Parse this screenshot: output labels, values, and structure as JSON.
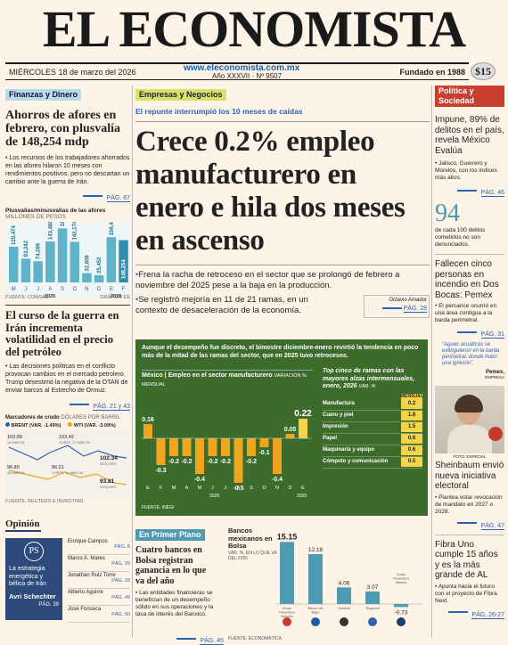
{
  "masthead": {
    "title": "EL ECONOMISTA"
  },
  "dateline": {
    "date": "MIÉRCOLES 18 de marzo del 2026",
    "url": "www.eleconomista.com.mx",
    "volume": "Año XXXVII · Nº 9507",
    "founded": "Fundado en 1988",
    "price": "$15"
  },
  "left": {
    "section": "Finanzas y Dinero",
    "headline": "Ahorros de afores en febrero, con plusvalía de 148,254 mdp",
    "body": "• Los recursos de los trabajadores ahorrados en las afores hilaron 10 meses con rendimientos positivos, pero no descartan un cambio ante la guerra de Irán.",
    "page": "PÁG. 67",
    "chart_title": "Plusvalías/minusvalías de las afores",
    "chart_unit": "MILLONES DE PESOS",
    "year1": "2025",
    "year2": "2026",
    "source": "FUENTE: CONSAR",
    "graphic": "GRÁFICO EE",
    "headline2": "El curso de la guerra en Irán incrementa volatilidad en el precio del petróleo",
    "body2": "• Las decisiones políticas en el conflicto provocan cambios en el mercado petrolero. Trump desestimó la negativa de la OTAN de enviar barcos al Estrecho de Ormuz.",
    "page2": "PÁG. 21 y 43",
    "oil_title": "Marcadores de crudo",
    "oil_unit": "DÓLARES POR BARRIL",
    "brent_label": "BRENT (VAR. -1.49%)",
    "wti_label": "WTI (VAR. -3.09%)",
    "oil_source": "FUENTE: REUTERS E INVESTING"
  },
  "center": {
    "section": "Empresas y Negocios",
    "kicker": "El repunte interrumpió los 10 meses de caídas",
    "headline": "Crece 0.2% empleo manufacturero en enero e hila dos meses en ascenso",
    "bullet1": "Frena la racha de retroceso en el sector que se prolongó de febrero a noviembre del 2025 pese a la baja en la producción.",
    "bullet2": "Se registró mejoría en 11 de 21 ramas, en un contexto de desaceleración de la economía.",
    "author": "Octavio Amador",
    "page": "PÁG. 28",
    "box_lead": "Aunque el desempeño fue discreto, el bimestre diciembre-enero revirtió la tendencia en poco más de la mitad de las ramas del sector, que en 2025 tuvo retrocesos.",
    "box_chart_title": "México | Empleo en el sector manufacturero",
    "box_chart_unit": "VARIACIÓN % MENSUAL",
    "box_source": "FUENTE: INEGI",
    "top_title": "Top cinco de ramas con las mayores alzas intermensuales, enero, 2026",
    "top_unit": "VAR. %",
    "top_col": "MENSUAL"
  },
  "right": {
    "section": "Política y Sociedad",
    "headline": "Impune, 89% de delitos en el país, revela México Evalúa",
    "body": "• Jalisco, Guerrero y Morelos, con los índices más altos.",
    "page": "PÁG. 46",
    "stat": "94",
    "stat_caption": "de cada 100 delitos cometidos no son denunciados.",
    "headline2": "Fallecen cinco personas en incendio en Dos Bocas: Pemex",
    "body2": "• El percance ocurrió en una área contigua a la barda perimetral.",
    "page2": "PÁG. 31",
    "quote": "“Aguas acuáticas se extinguieron en la barda perimetral, donde hubo una ignición”.",
    "quote_by": "Pemex,",
    "quote_role": "EMPRESA",
    "photo_credit": "FOTO: ESPECIAL",
    "headline3": "Sheinbaum envió nueva iniciativa electoral",
    "body3": "• Plantea votar revocación de mandato en 2027 o 2028.",
    "page3": "PÁG. 47",
    "headline4": "Fibra Uno cumple 15 años y es la más grande de AL",
    "body4": "• Apunta hacia el futuro con el proyecto de Fibra Next.",
    "page4": "PÁG. 26-27"
  },
  "opinion": {
    "title": "Opinión",
    "logo": "PS",
    "feature_title": "La estrategia energética y bélica de Irán",
    "feature_author": "Avri Schechter",
    "feature_page": "PÁG. 39",
    "columnists": [
      {
        "name": "Enrique Campos",
        "page": "PÁG. 8"
      },
      {
        "name": "Marco A. Mares",
        "page": "PÁG. 29"
      },
      {
        "name": "Jonathan Ruiz Torre",
        "page": "PÁG. 33"
      },
      {
        "name": "Alberto Aguirre",
        "page": "PÁG. 49"
      },
      {
        "name": "José Fonseca",
        "page": "PÁG. 50"
      }
    ]
  },
  "primer_plano": {
    "section": "En Primer Plano",
    "headline": "Cuatro bancos en Bolsa registran ganancia en lo que va del año",
    "body": "• Las entidades financieras se beneficían de un desempeño sólido en sus operaciones y la tasa de interés del Banxico.",
    "page": "PÁG. 45",
    "chart_title": "Bancos mexicanos en Bolsa",
    "chart_unit": "VAR. %, EN LO QUE VA DEL 2026",
    "source": "FUENTE: ECONOMÁTICA"
  },
  "chart_data": [
    {
      "type": "bar",
      "title": "Plusvalías/minusvalías de las afores",
      "ylabel": "MILLONES DE PESOS",
      "categories": [
        "M",
        "J",
        "J",
        "A",
        "S",
        "O",
        "N",
        "D",
        "E",
        "F"
      ],
      "values": [
        125474,
        83242,
        74286,
        143466,
        189439,
        142174,
        32608,
        25452,
        158471,
        148254
      ]
    },
    {
      "type": "line",
      "title": "Marcadores de crudo",
      "ylabel": "DÓLARES POR BARRIL",
      "series": [
        {
          "name": "BRENT (VAR. -1.49%)",
          "labels": [
            "103.89",
            "103.42",
            "102.34"
          ],
          "notes": [
            "16-MAR-26",
            "CORTE, 17-MAR-26",
            "20:00 HRS."
          ]
        },
        {
          "name": "WTI (VAR. -3.09%)",
          "labels": [
            "96.80",
            "96.21",
            "93.81"
          ],
          "notes": [
            "16-MAR-26",
            "CORTE, 17-MAR-26",
            "20:00 HRS."
          ]
        }
      ]
    },
    {
      "type": "bar",
      "title": "México | Empleo en el sector manufacturero",
      "ylabel": "VARIACIÓN % MENSUAL",
      "categories": [
        "E",
        "F",
        "M",
        "A",
        "M",
        "J",
        "J",
        "A",
        "S",
        "O",
        "N",
        "D",
        "E"
      ],
      "values": [
        0.16,
        -0.3,
        -0.2,
        -0.2,
        -0.4,
        -0.2,
        -0.2,
        -0.5,
        -0.2,
        -0.1,
        -0.4,
        0.05,
        0.22
      ],
      "value_labels": [
        "0.16",
        "-0.3",
        "-0.2",
        "-0.2",
        "-0.4",
        "-0.2",
        "-0.2",
        "-0.5",
        "-0.2",
        "-0.1",
        "-0.4",
        "0.05",
        "0.22"
      ],
      "year_labels": [
        "2025",
        "2026"
      ]
    },
    {
      "type": "table",
      "title": "Top cinco de ramas con las mayores alzas intermensuales, enero, 2026",
      "rows": [
        {
          "name": "Manufactura",
          "value": "0.2"
        },
        {
          "name": "Cuero y piel",
          "value": "1.8"
        },
        {
          "name": "Impresión",
          "value": "1.5"
        },
        {
          "name": "Papel",
          "value": "0.6"
        },
        {
          "name": "Maquinaria y equipo",
          "value": "0.6"
        },
        {
          "name": "Cómputo y comunicación",
          "value": "0.5"
        }
      ]
    },
    {
      "type": "bar",
      "title": "Bancos mexicanos en Bolsa",
      "ylabel": "VAR. %, EN LO QUE VA DEL 2026",
      "categories": [
        "Grupo Financiero Banorte",
        "Banco del Bajío",
        "Gentera",
        "Regional",
        "Grupo Financiero Inbursa"
      ],
      "values": [
        15.15,
        12.18,
        4.06,
        3.07,
        -0.73
      ],
      "value_labels": [
        "15.15",
        "12.18",
        "4.06",
        "3.07",
        "-0.73"
      ]
    }
  ]
}
